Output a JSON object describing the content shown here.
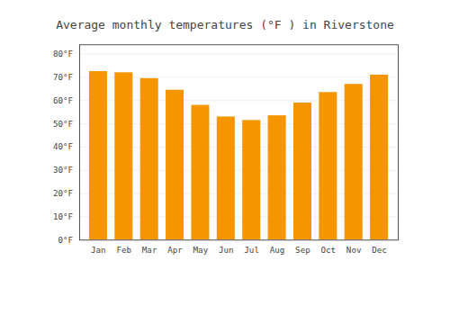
{
  "chart_data": {
    "type": "bar",
    "title": "Average monthly temperatures (°F ) in Riverstone",
    "categories": [
      "Jan",
      "Feb",
      "Mar",
      "Apr",
      "May",
      "Jun",
      "Jul",
      "Aug",
      "Sep",
      "Oct",
      "Nov",
      "Dec"
    ],
    "values": [
      72.5,
      72.0,
      69.5,
      64.5,
      58.0,
      53.0,
      51.5,
      53.5,
      59.0,
      63.5,
      67.0,
      71.0
    ],
    "color": "#F59500",
    "ylim": [
      0,
      84
    ],
    "yticks": [
      {
        "value": 0,
        "label": "0°F"
      },
      {
        "value": 10,
        "label": "10°F"
      },
      {
        "value": 20,
        "label": "20°F"
      },
      {
        "value": 30,
        "label": "30°F"
      },
      {
        "value": 40,
        "label": "40°F"
      },
      {
        "value": 50,
        "label": "50°F"
      },
      {
        "value": 60,
        "label": "60°F"
      },
      {
        "value": 70,
        "label": "70°F"
      },
      {
        "value": 80,
        "label": "80°F"
      }
    ],
    "grid": true
  }
}
